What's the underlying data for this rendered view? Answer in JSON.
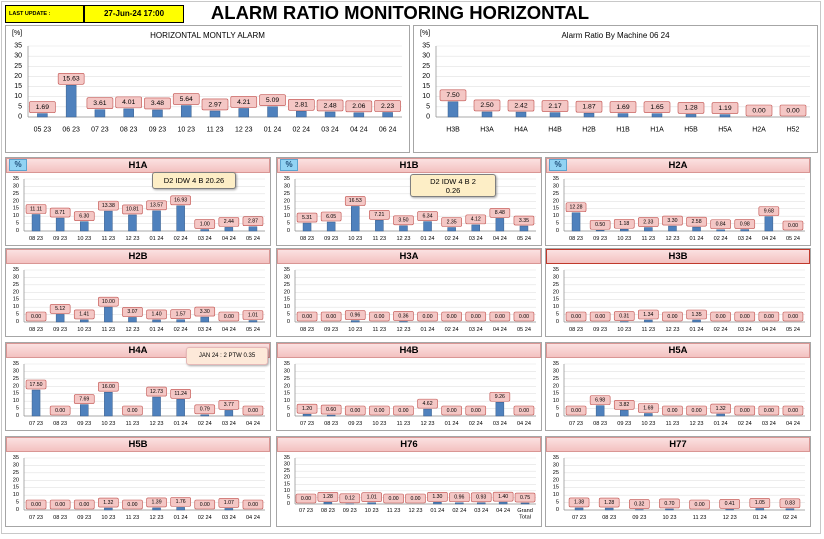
{
  "header": {
    "last_update_label": "LAST UPDATE :",
    "last_update_value": "27-Jun-24 17:00",
    "title": "ALARM RATIO MONITORING HORIZONTAL"
  },
  "colors": {
    "update_cell": "#ffff00",
    "bar": "#4f81bd",
    "bar_edge": "#385d8a",
    "value_label_fill": "#f4c7c5",
    "value_label_border": "#c0504d",
    "header_fill": "#f3c1c0",
    "header_border": "#d99694",
    "header_highlight_border": "#c0392b",
    "badge_fill": "#92d3f3",
    "badge_text": "#1f4e79",
    "callout_fill": "#fdeec6",
    "callout_alt_fill": "#fde9d9"
  },
  "chart_data": [
    {
      "type": "bar",
      "title": "HORIZONTAL MONTLY ALARM",
      "unit_label": "[%]",
      "categories": [
        "05 23",
        "06 23",
        "07 23",
        "08 23",
        "09 23",
        "10 23",
        "11 23",
        "12 23",
        "01 24",
        "02 24",
        "03 24",
        "04 24",
        "06 24"
      ],
      "values": [
        1.69,
        15.63,
        3.61,
        4.01,
        3.48,
        5.64,
        2.97,
        4.21,
        5.09,
        2.81,
        2.48,
        2.06,
        2.23
      ],
      "ylim": [
        0,
        35
      ],
      "ystep": 5,
      "grid": true
    },
    {
      "type": "bar",
      "title": "Alarm Ratio By Machine 06 24",
      "unit_label": "[%]",
      "categories": [
        "H3B",
        "H3A",
        "H4A",
        "H4B",
        "H2B",
        "H1B",
        "H1A",
        "H5B",
        "H5A",
        "H2A",
        "H52"
      ],
      "values": [
        7.5,
        2.5,
        2.42,
        2.17,
        1.87,
        1.69,
        1.65,
        1.28,
        1.19,
        0.0,
        0.0
      ],
      "ylim": [
        0,
        35
      ],
      "ystep": 5,
      "grid": true
    },
    {
      "type": "bar",
      "title": "H1A",
      "badge": "%",
      "annotation": [
        "D2 IDW 4 B 20.26"
      ],
      "categories": [
        "08 23",
        "09 23",
        "10 23",
        "11 23",
        "12 23",
        "01 24",
        "02 24",
        "03 24",
        "04 24",
        "05 24"
      ],
      "values": [
        11.11,
        8.71,
        6.3,
        13.38,
        10.81,
        13.57,
        16.93,
        1.0,
        2.44,
        2.87
      ],
      "ylim": [
        0,
        35
      ],
      "ystep": 5,
      "grid": true
    },
    {
      "type": "bar",
      "title": "H1B",
      "badge": "%",
      "annotation": [
        "D2 IDW 4 B 2",
        "0.26"
      ],
      "categories": [
        "08 23",
        "09 23",
        "10 23",
        "11 23",
        "12 23",
        "01 24",
        "02 24",
        "03 24",
        "04 24",
        "05 24"
      ],
      "values": [
        5.31,
        6.05,
        16.53,
        7.21,
        3.5,
        6.34,
        2.35,
        4.12,
        8.48,
        3.35
      ],
      "ylim": [
        0,
        35
      ],
      "ystep": 5,
      "grid": true
    },
    {
      "type": "bar",
      "title": "H2A",
      "badge": "%",
      "categories": [
        "08 23",
        "09 23",
        "10 23",
        "11 23",
        "12 23",
        "01 24",
        "02 24",
        "03 24",
        "04 24",
        "05 24"
      ],
      "values": [
        12.28,
        0.5,
        1.18,
        2.33,
        3.3,
        2.58,
        0.84,
        0.98,
        9.68,
        0.0
      ],
      "ylim": [
        0,
        35
      ],
      "ystep": 5,
      "grid": true
    },
    {
      "type": "bar",
      "title": "H2B",
      "categories": [
        "08 23",
        "09 23",
        "10 23",
        "11 23",
        "12 23",
        "01 24",
        "02 24",
        "03 24",
        "04 24",
        "05 24"
      ],
      "values": [
        0.0,
        5.12,
        1.41,
        10.0,
        3.07,
        1.4,
        1.57,
        3.3,
        0.0,
        1.01
      ],
      "ylim": [
        0,
        35
      ],
      "ystep": 5,
      "grid": true
    },
    {
      "type": "bar",
      "title": "H3A",
      "categories": [
        "08 23",
        "09 23",
        "10 23",
        "11 23",
        "12 23",
        "01 24",
        "02 24",
        "03 24",
        "04 24",
        "05 24"
      ],
      "values": [
        0.0,
        0.0,
        0.96,
        0.0,
        0.36,
        0.0,
        0.0,
        0.0,
        0.0,
        0.0
      ],
      "ylim": [
        0,
        35
      ],
      "ystep": 5,
      "grid": true
    },
    {
      "type": "bar",
      "title": "H3B",
      "categories": [
        "08 23",
        "09 23",
        "10 23",
        "11 23",
        "12 23",
        "01 24",
        "02 24",
        "03 24",
        "04 24",
        "05 24"
      ],
      "values": [
        0.0,
        0.0,
        0.31,
        1.34,
        0.0,
        1.35,
        0.0,
        0.0,
        0.0,
        0.0
      ],
      "ylim": [
        0,
        35
      ],
      "ystep": 5,
      "grid": true
    },
    {
      "type": "bar",
      "title": "H4A",
      "annotation": [
        "JAN 24 : 2 PTW 0.35"
      ],
      "categories": [
        "07 23",
        "08 23",
        "09 23",
        "10 23",
        "11 23",
        "12 23",
        "01 24",
        "02 24",
        "03 24",
        "04 24"
      ],
      "values": [
        17.5,
        0.0,
        7.69,
        16.0,
        0.0,
        12.73,
        11.24,
        0.79,
        3.77,
        0.0
      ],
      "ylim": [
        0,
        35
      ],
      "ystep": 5,
      "grid": true
    },
    {
      "type": "bar",
      "title": "H4B",
      "categories": [
        "07 23",
        "08 23",
        "09 23",
        "10 23",
        "11 23",
        "12 23",
        "01 24",
        "02 24",
        "03 24",
        "04 24"
      ],
      "values": [
        1.2,
        0.6,
        0.0,
        0.0,
        0.0,
        4.62,
        0.0,
        0.0,
        9.26,
        0.0
      ],
      "ylim": [
        0,
        35
      ],
      "ystep": 5,
      "grid": true
    },
    {
      "type": "bar",
      "title": "H5A",
      "categories": [
        "07 23",
        "08 23",
        "09 23",
        "10 23",
        "11 23",
        "12 23",
        "01 24",
        "02 24",
        "03 24",
        "04 24"
      ],
      "values": [
        0.0,
        6.98,
        3.82,
        1.69,
        0.0,
        0.0,
        1.32,
        0.0,
        0.0,
        0.0
      ],
      "ylim": [
        0,
        35
      ],
      "ystep": 5,
      "grid": true
    },
    {
      "type": "bar",
      "title": "H5B",
      "categories": [
        "07 23",
        "08 23",
        "09 23",
        "10 23",
        "11 23",
        "12 23",
        "01 24",
        "02 24",
        "03 24",
        "04 24"
      ],
      "values": [
        0.0,
        0.0,
        0.0,
        1.32,
        0.0,
        1.39,
        1.76,
        0.0,
        1.07,
        0.0
      ],
      "ylim": [
        0,
        35
      ],
      "ystep": 5,
      "grid": true
    },
    {
      "type": "bar",
      "title": "H76",
      "categories": [
        "07 23",
        "08 23",
        "09 23",
        "10 23",
        "11 23",
        "12 23",
        "01 24",
        "02 24",
        "03 24",
        "04 24",
        "Grand Total"
      ],
      "values": [
        0.0,
        1.28,
        0.12,
        1.01,
        0.0,
        0.0,
        1.3,
        0.96,
        0.93,
        1.4,
        0.75
      ],
      "ylim": [
        0,
        35
      ],
      "ystep": 5,
      "grid": true
    },
    {
      "type": "bar",
      "title": "H77",
      "categories": [
        "07 23",
        "08 23",
        "09 23",
        "10 23",
        "11 23",
        "12 23",
        "01 24",
        "02 24"
      ],
      "values": [
        1.38,
        1.28,
        0.32,
        0.7,
        0.0,
        0.41,
        1.05,
        0.83
      ],
      "ylim": [
        0,
        35
      ],
      "ystep": 5,
      "grid": true
    }
  ]
}
